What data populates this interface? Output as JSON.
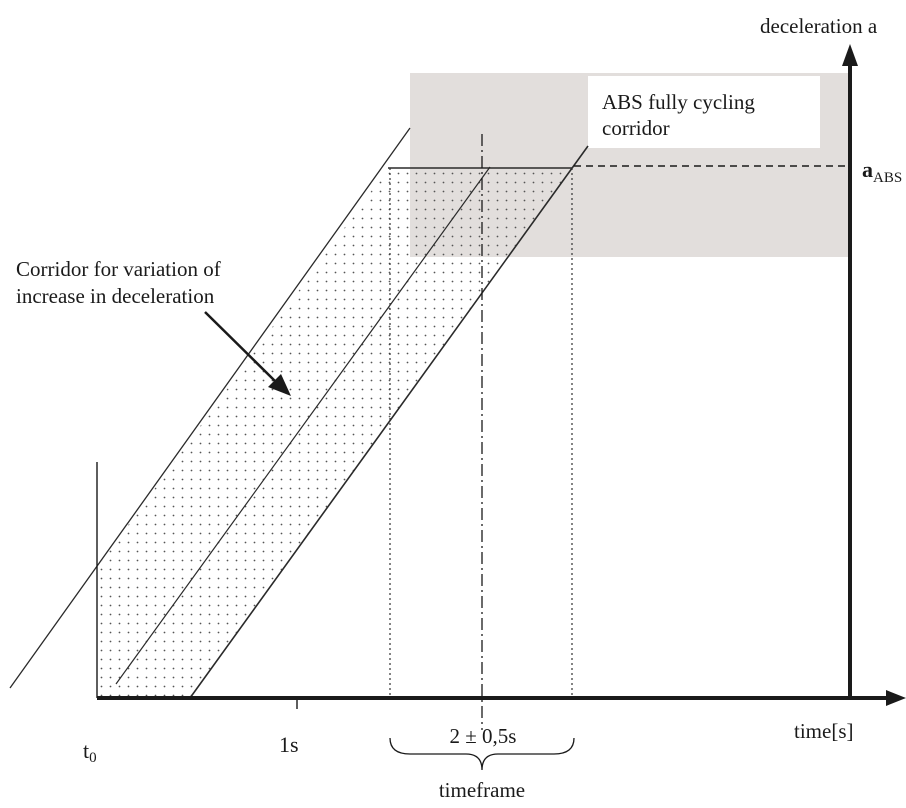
{
  "labels": {
    "y_axis": "deceleration a",
    "a_abs_main": "a",
    "a_abs_sub": "ABS",
    "abs_corridor_line1": "ABS fully cycling",
    "abs_corridor_line2": "corridor",
    "variation_line1": "Corridor for variation of",
    "variation_line2": "increase in deceleration",
    "x_axis": "time[s]",
    "t0_main": "t",
    "t0_sub": "0",
    "one_s": "1s",
    "interval": "2 ± 0,5s",
    "timeframe": "timeframe"
  },
  "colors": {
    "line": "#1a1a1a",
    "shade": "#e2dedc",
    "dots": "#555555",
    "background": "#ffffff"
  }
}
